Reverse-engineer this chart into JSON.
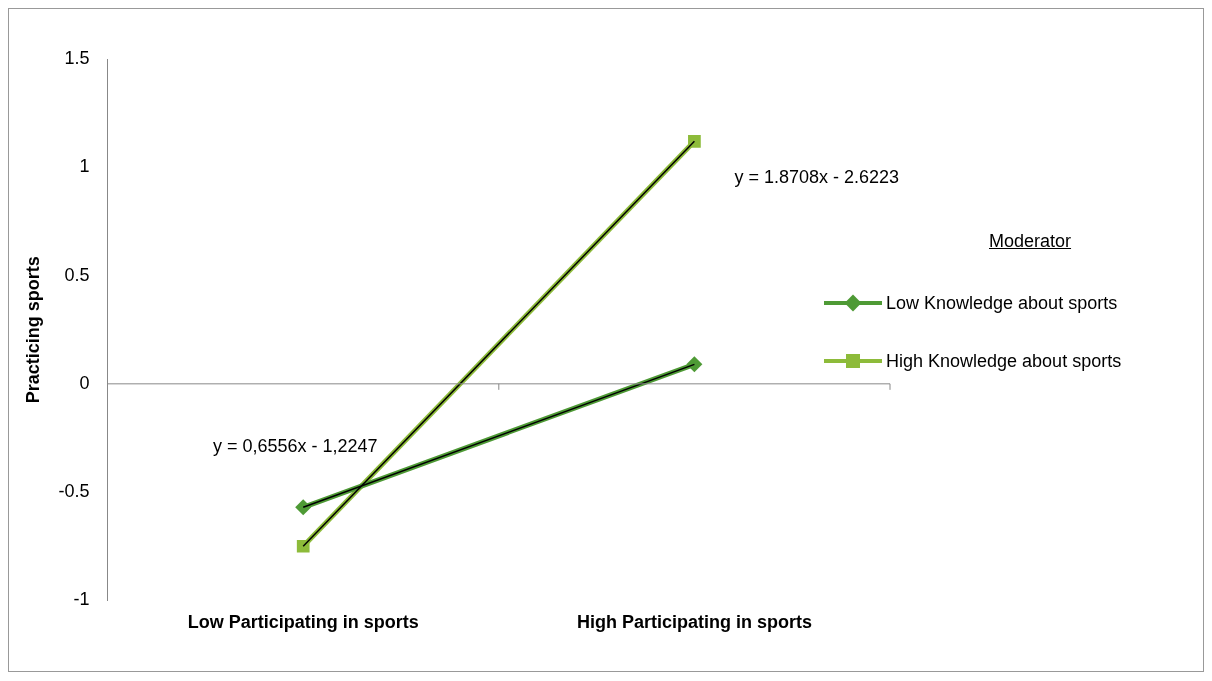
{
  "chart_data": {
    "type": "line",
    "ylabel": "Practicing sports",
    "legend_title": "Moderator",
    "legend": "right",
    "categories": [
      "Low Participating in sports",
      "High Participating in sports"
    ],
    "ylim": [
      -1,
      1.5
    ],
    "ref_lines": [
      {
        "axis": "y",
        "value": 0,
        "color": "#888888"
      }
    ],
    "yticks": [
      -1,
      -0.5,
      0,
      0.5,
      1,
      1.5
    ],
    "grid": false,
    "series": [
      {
        "name": "Low Knowledge about sports",
        "color": "#4e9a35",
        "marker": "diamond",
        "values": [
          -0.57,
          0.09
        ]
      },
      {
        "name": "High Knowledge about sports",
        "color": "#8dbb3a",
        "marker": "square",
        "values": [
          -0.75,
          1.12
        ]
      },
      {
        "type": "line",
        "color": "#000000",
        "marker": "none",
        "x": [
          "Low Participating in sports",
          "High Participating in sports"
        ],
        "values": [
          -0.57,
          0.09
        ]
      },
      {
        "type": "line",
        "color": "#000000",
        "marker": "none",
        "x": [
          "Low Participating in sports",
          "High Participating in sports"
        ],
        "values": [
          -0.75,
          1.12
        ]
      }
    ],
    "annotations": [
      {
        "text": "y = 1.8708x - 2.6223",
        "x": "High Participating in sports",
        "y": 1.12
      },
      {
        "text": "y = 0,6556x - 1,2247",
        "x": "Low Participating in sports",
        "y": -0.57
      }
    ]
  }
}
